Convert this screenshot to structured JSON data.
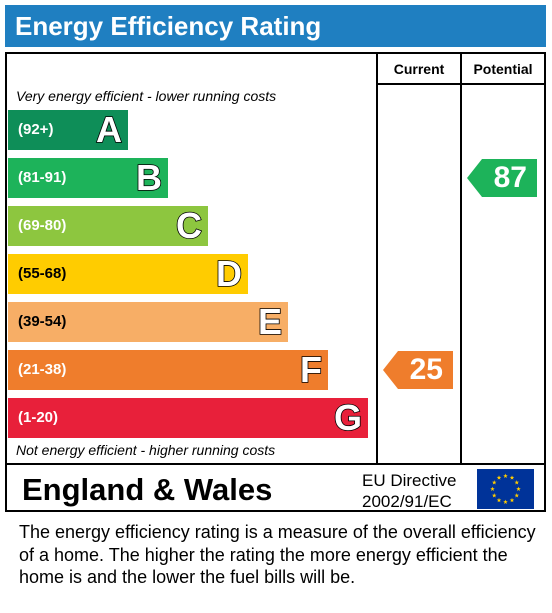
{
  "header": {
    "title": "Energy Efficiency Rating"
  },
  "table": {
    "current_label": "Current",
    "potential_label": "Potential",
    "top_caption": "Very energy efficient - lower running costs",
    "bottom_caption": "Not energy efficient - higher running costs"
  },
  "chart_data": {
    "type": "bar",
    "title": "Energy Efficiency Rating",
    "categories": [
      "A",
      "B",
      "C",
      "D",
      "E",
      "F",
      "G"
    ],
    "ranges": [
      "(92+)",
      "(81-91)",
      "(69-80)",
      "(55-68)",
      "(39-54)",
      "(21-38)",
      "(1-20)"
    ],
    "colors": [
      "#0e8e58",
      "#1db35a",
      "#8dc63f",
      "#ffcc00",
      "#f7ae66",
      "#ef7d2c",
      "#e8203a"
    ],
    "current": {
      "value": 25,
      "band": "F",
      "color": "#ef7d2c"
    },
    "potential": {
      "value": 87,
      "band": "B",
      "color": "#1db35a"
    }
  },
  "footer": {
    "region": "England & Wales",
    "directive_line1": "EU Directive",
    "directive_line2": "2002/91/EC",
    "flag_colors": {
      "field": "#003399",
      "stars": "#ffcc00"
    },
    "description": "The energy efficiency rating is a measure of the overall efficiency of a home.  The higher the rating the more energy efficient the home is and the lower the fuel bills will be."
  }
}
